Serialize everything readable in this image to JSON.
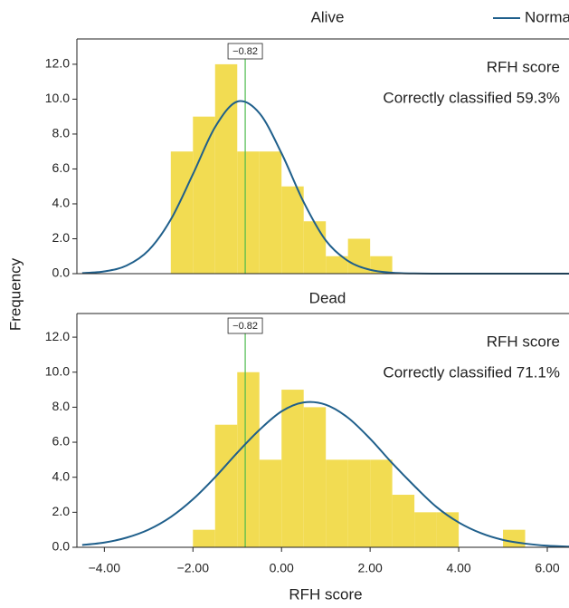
{
  "chart_data": [
    {
      "type": "histogram",
      "title": "Alive",
      "y_label": "Frequency",
      "annotations": [
        "RFH score",
        "Correctly classified 59.3%"
      ],
      "bins": [
        -2.5,
        -2.0,
        -1.5,
        -1.0,
        -0.5,
        0.0,
        0.5,
        1.0,
        1.5,
        2.0,
        2.5
      ],
      "values": [
        7,
        9,
        12,
        7,
        7,
        5,
        3,
        1,
        2,
        1
      ],
      "color": "#f2dc52",
      "marker": {
        "value": -0.82,
        "label": "−0.82",
        "color": "#4dbb4d"
      },
      "series": [
        {
          "name": "Normal",
          "color": "#1f5f8b",
          "x": [
            -4.5,
            -4.0,
            -3.5,
            -3.0,
            -2.5,
            -2.0,
            -1.5,
            -1.0,
            -0.5,
            0.0,
            0.5,
            1.0,
            1.5,
            2.0,
            2.5,
            3.0,
            3.5,
            4.0,
            4.5,
            5.0,
            5.5,
            6.0,
            6.5
          ],
          "values": [
            0.03,
            0.13,
            0.46,
            1.34,
            3.1,
            5.7,
            8.4,
            9.86,
            9.2,
            6.9,
            4.1,
            1.9,
            0.73,
            0.22,
            0.05,
            0.01,
            0,
            0,
            0,
            0,
            0,
            0,
            0
          ]
        }
      ],
      "legend": "top-right",
      "xlim": [
        -4.62,
        6.49
      ],
      "ylim": [
        0,
        13.45
      ],
      "yticks": [
        {
          "value": 0,
          "label": "0.0"
        },
        {
          "value": 2,
          "label": "2.0"
        },
        {
          "value": 4,
          "label": "4.0"
        },
        {
          "value": 6,
          "label": "6.0"
        },
        {
          "value": 8,
          "label": "8.0"
        },
        {
          "value": 10,
          "label": "10.0"
        },
        {
          "value": 12,
          "label": "12.0"
        }
      ]
    },
    {
      "type": "histogram",
      "title": "Dead",
      "x_label": "RFH score",
      "annotations": [
        "RFH score",
        "Correctly classified 71.1%"
      ],
      "bins": [
        -2.0,
        -1.5,
        -1.0,
        -0.5,
        0.0,
        0.5,
        1.0,
        1.5,
        2.0,
        2.5,
        3.0,
        3.5,
        4.0,
        4.5,
        5.0,
        5.5
      ],
      "values": [
        1,
        7,
        10,
        5,
        9,
        8,
        5,
        5,
        5,
        3,
        2,
        2,
        0,
        0,
        1
      ],
      "color": "#f2dc52",
      "marker": {
        "value": -0.82,
        "label": "−0.82",
        "color": "#4dbb4d"
      },
      "series": [
        {
          "color": "#1f5f8b",
          "x": [
            -4.5,
            -4.0,
            -3.5,
            -3.0,
            -2.5,
            -2.0,
            -1.5,
            -1.0,
            -0.5,
            0.0,
            0.5,
            1.0,
            1.5,
            2.0,
            2.5,
            3.0,
            3.5,
            4.0,
            4.5,
            5.0,
            5.5,
            6.0,
            6.5
          ],
          "values": [
            0.13,
            0.27,
            0.55,
            1.01,
            1.73,
            2.74,
            4.0,
            5.4,
            6.7,
            7.76,
            8.27,
            8.14,
            7.4,
            6.2,
            4.8,
            3.5,
            2.3,
            1.42,
            0.81,
            0.42,
            0.21,
            0.09,
            0.04
          ]
        }
      ],
      "xlim": [
        -4.62,
        6.49
      ],
      "ylim": [
        0,
        13.35
      ],
      "xticks": [
        {
          "value": -4,
          "label": "−4.00"
        },
        {
          "value": -2,
          "label": "−2.00"
        },
        {
          "value": 0,
          "label": "0.00"
        },
        {
          "value": 2,
          "label": "2.00"
        },
        {
          "value": 4,
          "label": "4.00"
        },
        {
          "value": 6,
          "label": "6.00"
        }
      ],
      "yticks": [
        {
          "value": 0,
          "label": "0.0"
        },
        {
          "value": 2,
          "label": "2.0"
        },
        {
          "value": 4,
          "label": "4.0"
        },
        {
          "value": 6,
          "label": "6.0"
        },
        {
          "value": 8,
          "label": "8.0"
        },
        {
          "value": 10,
          "label": "10.0"
        },
        {
          "value": 12,
          "label": "12.0"
        }
      ]
    }
  ]
}
